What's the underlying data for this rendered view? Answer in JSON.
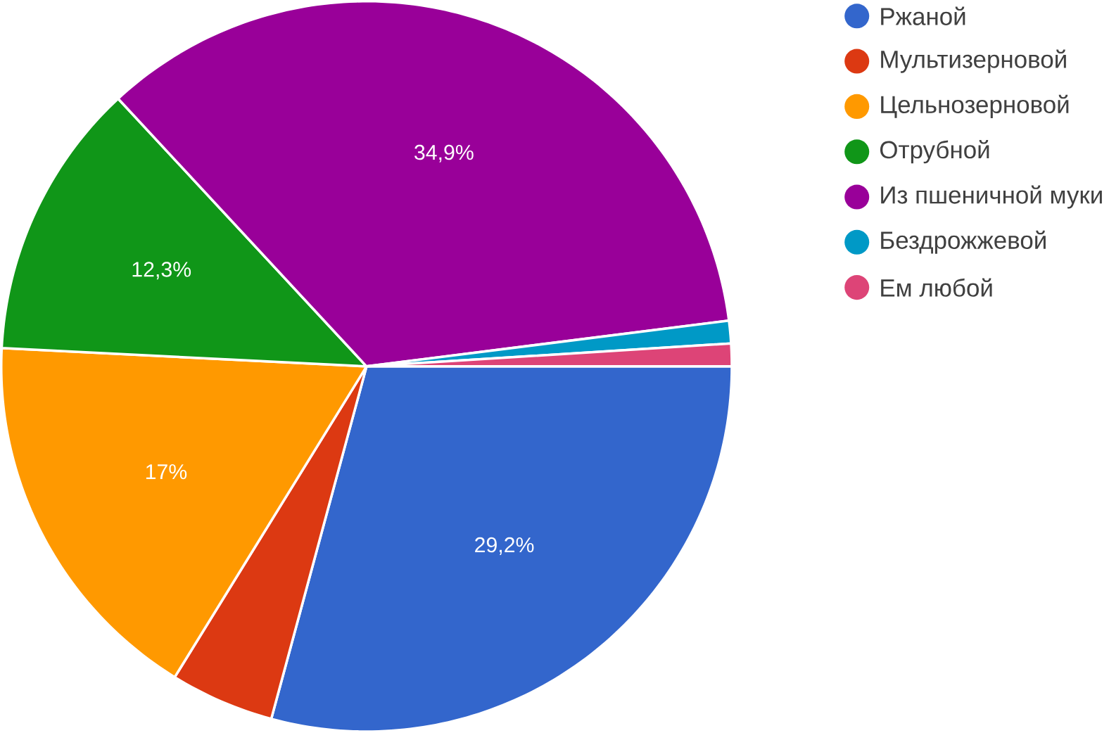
{
  "chart_data": {
    "type": "pie",
    "categories": [
      "Ржаной",
      "Мультизерновой",
      "Цельнозерновой",
      "Отрубной",
      "Из пшеничной муки",
      "Бездрожжевой",
      "Ем любой"
    ],
    "values": [
      29.2,
      4.6,
      17,
      12.3,
      34.9,
      1.0,
      1.0
    ],
    "colors": [
      "#3366cc",
      "#dc3912",
      "#ff9900",
      "#109618",
      "#990099",
      "#0099c6",
      "#dd4477"
    ],
    "value_labels": [
      "29,2%",
      null,
      "17%",
      "12,3%",
      "34,9%",
      null,
      null
    ],
    "legend": "right"
  }
}
